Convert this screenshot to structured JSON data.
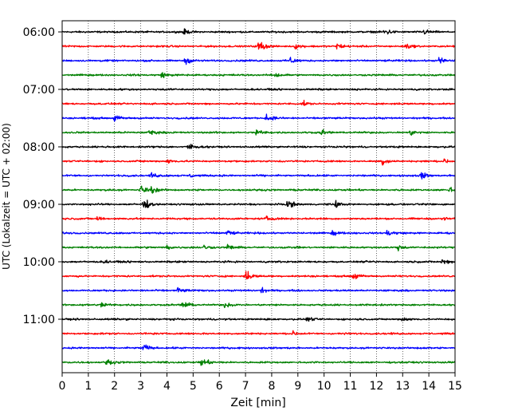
{
  "chart_data": {
    "type": "line",
    "xlabel": "Zeit  [min]",
    "ylabel": "UTC (Lokalzeit = UTC + 02:00)",
    "xlim": [
      0,
      15
    ],
    "x_ticks": [
      "0",
      "1",
      "2",
      "3",
      "4",
      "5",
      "6",
      "7",
      "8",
      "9",
      "10",
      "11",
      "12",
      "13",
      "14",
      "15"
    ],
    "y_tick_labels": [
      "06:00",
      "07:00",
      "08:00",
      "09:00",
      "10:00",
      "11:00"
    ],
    "grid": "vertical dotted",
    "trace_colors": [
      "#000000",
      "#ff0000",
      "#0000ff",
      "#008000"
    ],
    "traces": [
      {
        "start": "06:00",
        "events": [
          [
            4.6,
            0.6
          ],
          [
            12.3,
            0.9
          ],
          [
            13.8,
            0.5
          ]
        ]
      },
      {
        "start": "06:15",
        "events": [
          [
            7.5,
            1.4
          ],
          [
            8.9,
            0.5
          ],
          [
            10.5,
            0.8
          ],
          [
            13.1,
            0.6
          ]
        ]
      },
      {
        "start": "06:30",
        "events": [
          [
            4.7,
            0.7
          ],
          [
            8.7,
            0.7
          ],
          [
            14.4,
            0.8
          ]
        ]
      },
      {
        "start": "06:45",
        "events": [
          [
            3.8,
            0.6
          ],
          [
            8.1,
            0.6
          ]
        ]
      },
      {
        "start": "07:00",
        "events": []
      },
      {
        "start": "07:15",
        "events": [
          [
            9.2,
            0.4
          ]
        ]
      },
      {
        "start": "07:30",
        "events": [
          [
            2.0,
            0.7
          ],
          [
            7.8,
            0.8
          ]
        ]
      },
      {
        "start": "07:45",
        "events": [
          [
            3.3,
            0.8
          ],
          [
            7.4,
            0.7
          ],
          [
            9.9,
            0.5
          ],
          [
            13.3,
            0.5
          ]
        ]
      },
      {
        "start": "08:00",
        "events": [
          [
            4.8,
            0.8
          ]
        ]
      },
      {
        "start": "08:15",
        "events": [
          [
            4.0,
            0.5
          ],
          [
            12.2,
            0.9
          ],
          [
            14.6,
            0.5
          ]
        ]
      },
      {
        "start": "08:30",
        "events": [
          [
            3.4,
            0.6
          ],
          [
            4.9,
            0.5
          ],
          [
            13.7,
            0.8
          ]
        ]
      },
      {
        "start": "08:45",
        "events": [
          [
            3.0,
            1.0
          ],
          [
            3.4,
            0.6
          ],
          [
            14.8,
            0.5
          ]
        ]
      },
      {
        "start": "09:00",
        "events": [
          [
            3.1,
            1.2
          ],
          [
            8.6,
            0.9
          ],
          [
            10.4,
            0.8
          ]
        ]
      },
      {
        "start": "09:15",
        "events": [
          [
            1.3,
            0.5
          ],
          [
            7.8,
            0.4
          ],
          [
            14.5,
            0.4
          ]
        ]
      },
      {
        "start": "09:30",
        "events": [
          [
            6.3,
            0.7
          ],
          [
            10.3,
            0.6
          ],
          [
            12.4,
            0.8
          ]
        ]
      },
      {
        "start": "09:45",
        "events": [
          [
            4.0,
            0.5
          ],
          [
            5.4,
            0.5
          ],
          [
            6.3,
            0.6
          ],
          [
            12.8,
            0.6
          ]
        ]
      },
      {
        "start": "10:00",
        "events": [
          [
            1.6,
            0.4
          ],
          [
            14.5,
            0.8
          ]
        ]
      },
      {
        "start": "10:15",
        "events": [
          [
            7.0,
            1.2
          ],
          [
            11.1,
            0.7
          ]
        ]
      },
      {
        "start": "10:30",
        "events": [
          [
            4.4,
            0.7
          ],
          [
            7.6,
            0.5
          ]
        ]
      },
      {
        "start": "10:45",
        "events": [
          [
            1.5,
            0.7
          ],
          [
            4.6,
            0.9
          ],
          [
            6.2,
            0.5
          ]
        ]
      },
      {
        "start": "11:00",
        "events": [
          [
            9.3,
            0.4
          ],
          [
            13.0,
            0.4
          ]
        ]
      },
      {
        "start": "11:15",
        "events": [
          [
            8.8,
            0.4
          ]
        ]
      },
      {
        "start": "11:30",
        "events": [
          [
            3.1,
            1.0
          ]
        ]
      },
      {
        "start": "11:45",
        "events": [
          [
            1.7,
            0.6
          ],
          [
            5.3,
            1.1
          ]
        ]
      }
    ]
  }
}
